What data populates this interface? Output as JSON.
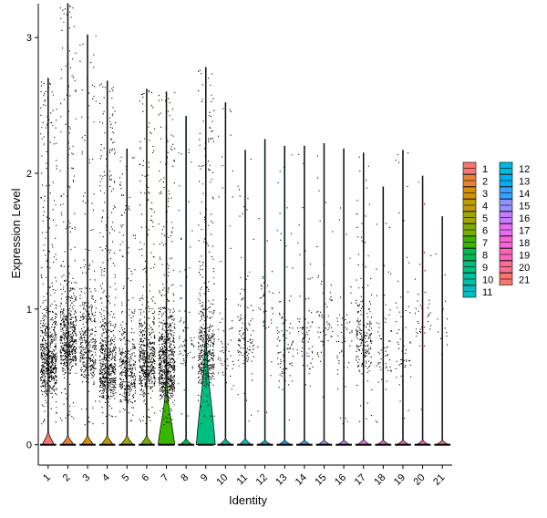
{
  "chart_data": {
    "type": "violin",
    "xlabel": "Identity",
    "ylabel": "Expression Level",
    "categories": [
      "1",
      "2",
      "3",
      "4",
      "5",
      "6",
      "7",
      "8",
      "9",
      "10",
      "11",
      "12",
      "13",
      "14",
      "15",
      "16",
      "17",
      "18",
      "19",
      "20",
      "21"
    ],
    "ylim": [
      -0.15,
      3.25
    ],
    "yticks": [
      0,
      1,
      2,
      3
    ],
    "legend_placement": "right",
    "legend_columns": 2,
    "grid": false,
    "colors": [
      "#F8766D",
      "#EA8331",
      "#D89000",
      "#C09B00",
      "#A3A500",
      "#7CAE00",
      "#39B600",
      "#00BB4E",
      "#00BF7D",
      "#00C1A3",
      "#00BFC4",
      "#00BAE0",
      "#00B0F6",
      "#35A2FF",
      "#9590FF",
      "#C77CFF",
      "#E76BF3",
      "#FA62DB",
      "#FF62BC",
      "#FF6C91",
      "#F8766D"
    ],
    "violin_max": [
      2.7,
      3.25,
      3.02,
      2.68,
      2.18,
      2.62,
      2.6,
      2.42,
      2.78,
      2.52,
      2.17,
      2.25,
      2.2,
      2.2,
      2.22,
      2.18,
      2.15,
      1.9,
      2.17,
      1.98,
      1.68
    ],
    "zero_density_height": [
      0.015,
      0.01,
      0.01,
      0.01,
      0.01,
      0.01,
      0.08,
      0.006,
      0.14,
      0.006,
      0.006,
      0.004,
      0.004,
      0.004,
      0.004,
      0.004,
      0.005,
      0.004,
      0.004,
      0.004,
      0.004
    ],
    "zero_density_halfwidth": [
      0.3,
      0.3,
      0.3,
      0.3,
      0.3,
      0.3,
      0.42,
      0.3,
      0.48,
      0.3,
      0.3,
      0.3,
      0.3,
      0.3,
      0.3,
      0.3,
      0.3,
      0.3,
      0.3,
      0.3,
      0.3
    ],
    "nonzero_point_counts": [
      700,
      600,
      400,
      650,
      400,
      550,
      750,
      80,
      500,
      60,
      120,
      40,
      100,
      70,
      60,
      60,
      200,
      60,
      60,
      40,
      15
    ],
    "nonzero_center": [
      0.55,
      0.7,
      0.65,
      0.5,
      0.45,
      0.55,
      0.5,
      0.7,
      0.6,
      0.6,
      0.7,
      1.0,
      0.6,
      0.7,
      0.8,
      0.7,
      0.7,
      0.6,
      0.6,
      0.9,
      0.8
    ]
  }
}
